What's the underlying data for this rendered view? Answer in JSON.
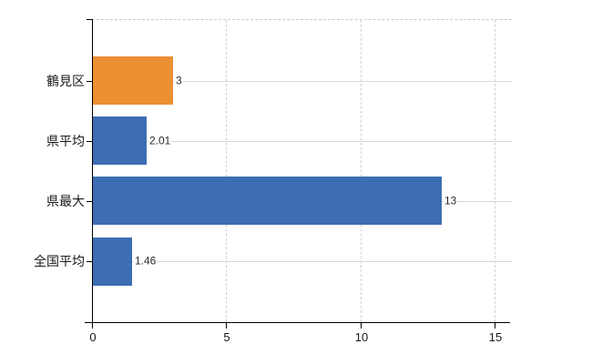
{
  "chart_data": {
    "type": "bar",
    "orientation": "horizontal",
    "title": "",
    "legend": "none",
    "categories": [
      "鶴見区",
      "県平均",
      "県最大",
      "全国平均"
    ],
    "values": [
      3,
      2.01,
      13,
      1.46
    ],
    "value_labels": [
      "3",
      "2.01",
      "13",
      "1.46"
    ],
    "bar_colors": [
      "#eb8f33",
      "#3d6db2",
      "#3d6db2",
      "#3d6db2"
    ],
    "xlim": [
      0,
      15
    ],
    "x_ticks": [
      0,
      5,
      10,
      15
    ],
    "x_tick_labels": [
      "0",
      "5",
      "10",
      "15"
    ],
    "grid": {
      "vertical_gridlines": "dashed at 5, 10, 15",
      "horizontal_row_lines": "solid at each category center",
      "top_border": "dashed"
    }
  },
  "colors": {
    "background": "#ffffff",
    "bar_orange": "#eb8f33",
    "bar_blue": "#3d6db2",
    "axis": "#000000",
    "row_gridline": "#d6d9d6",
    "dashed_gridline": "#cfcfcf",
    "category_text": "#1a1a1a",
    "value_text": "#2b2b2b"
  }
}
